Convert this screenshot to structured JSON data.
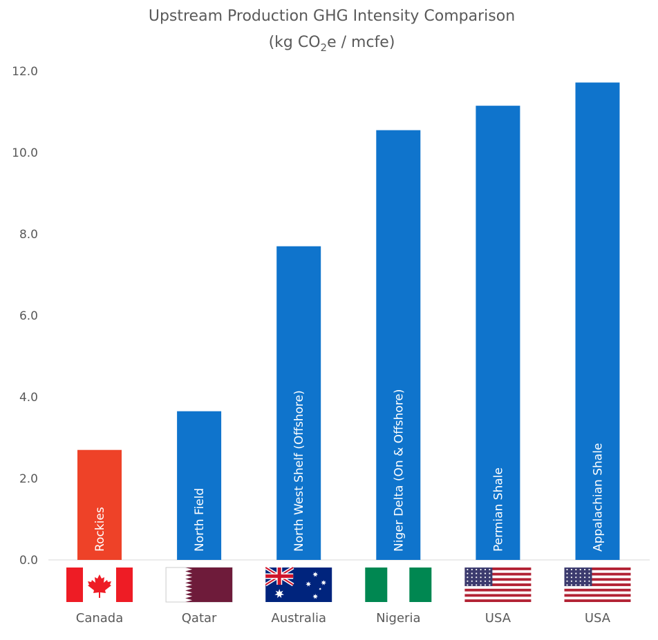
{
  "chart_data": {
    "type": "bar",
    "title": "Upstream Production GHG Intensity Comparison",
    "subtitle_prefix": "(kg CO",
    "subtitle_subscript": "2",
    "subtitle_suffix": "e / mcfe)",
    "xlabel": "",
    "ylabel": "",
    "ylim": [
      0,
      12
    ],
    "yticks": [
      "0.0",
      "2.0",
      "4.0",
      "6.0",
      "8.0",
      "10.0",
      "12.0"
    ],
    "grid": false,
    "categories": [
      "Rockies",
      "North Field",
      "North West Shelf (Offshore)",
      "Niger Delta (On & Offshore)",
      "Permian Shale",
      "Appalachian Shale"
    ],
    "countries": [
      "Canada",
      "Qatar",
      "Australia",
      "Nigeria",
      "USA",
      "USA"
    ],
    "flags": [
      "canada-flag",
      "qatar-flag",
      "australia-flag",
      "nigeria-flag",
      "usa-flag",
      "usa-flag"
    ],
    "values": [
      2.7,
      3.65,
      7.7,
      10.55,
      11.15,
      11.72
    ],
    "colors": [
      "#EE4228",
      "#0F74CC",
      "#0F74CC",
      "#0F74CC",
      "#0F74CC",
      "#0F74CC"
    ]
  }
}
